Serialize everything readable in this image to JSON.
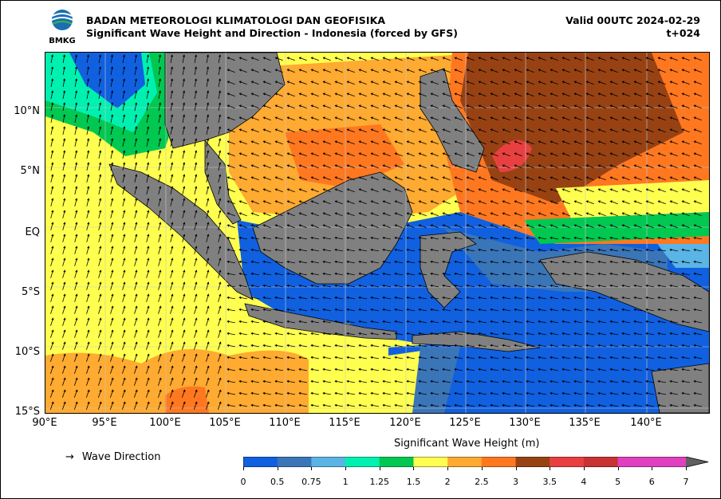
{
  "header": {
    "org": "BADAN METEOROLOGI KLIMATOLOGI DAN GEOFISIKA",
    "product": "Significant Wave Height and Direction - Indonesia (forced by GFS)",
    "valid": "Valid 00UTC 2024-02-29",
    "step": "t+024",
    "logo_text": "BMKG"
  },
  "axes": {
    "lat_labels": [
      "10°N",
      "5°N",
      "EQ",
      "5°S",
      "10°S",
      "15°S"
    ],
    "lon_labels": [
      "90°E",
      "95°E",
      "100°E",
      "105°E",
      "110°E",
      "115°E",
      "120°E",
      "125°E",
      "130°E",
      "135°E",
      "140°E"
    ]
  },
  "legend": {
    "wave_direction_symbol": "→",
    "wave_direction_label": "Wave Direction",
    "colorbar_title": "Significant Wave Height (m)",
    "colorbar_ticks": [
      "0",
      "0.5",
      "0.75",
      "1",
      "1.25",
      "1.5",
      "2",
      "2.5",
      "3",
      "3.5",
      "4",
      "5",
      "6",
      "7"
    ],
    "colorbar_colors": [
      "#1060e0",
      "#3a75b8",
      "#5ab4e6",
      "#00f0b0",
      "#00c850",
      "#ffff50",
      "#ffaa30",
      "#ff7820",
      "#984214",
      "#e84040",
      "#c83232",
      "#e040c0",
      "#e040c0",
      "#707070"
    ],
    "colorbar_extend_color": "#606060"
  },
  "map_colors": {
    "land": "#808080",
    "ocean_calm": "#1060e0",
    "ocean_mid": "#3a75b8",
    "cyan": "#5ab4e6",
    "teal": "#00f0b0",
    "green": "#00c850",
    "yellow": "#ffff50",
    "orange": "#ffaa30",
    "dark_orange": "#ff7820",
    "brown": "#984214",
    "red": "#e84040"
  }
}
